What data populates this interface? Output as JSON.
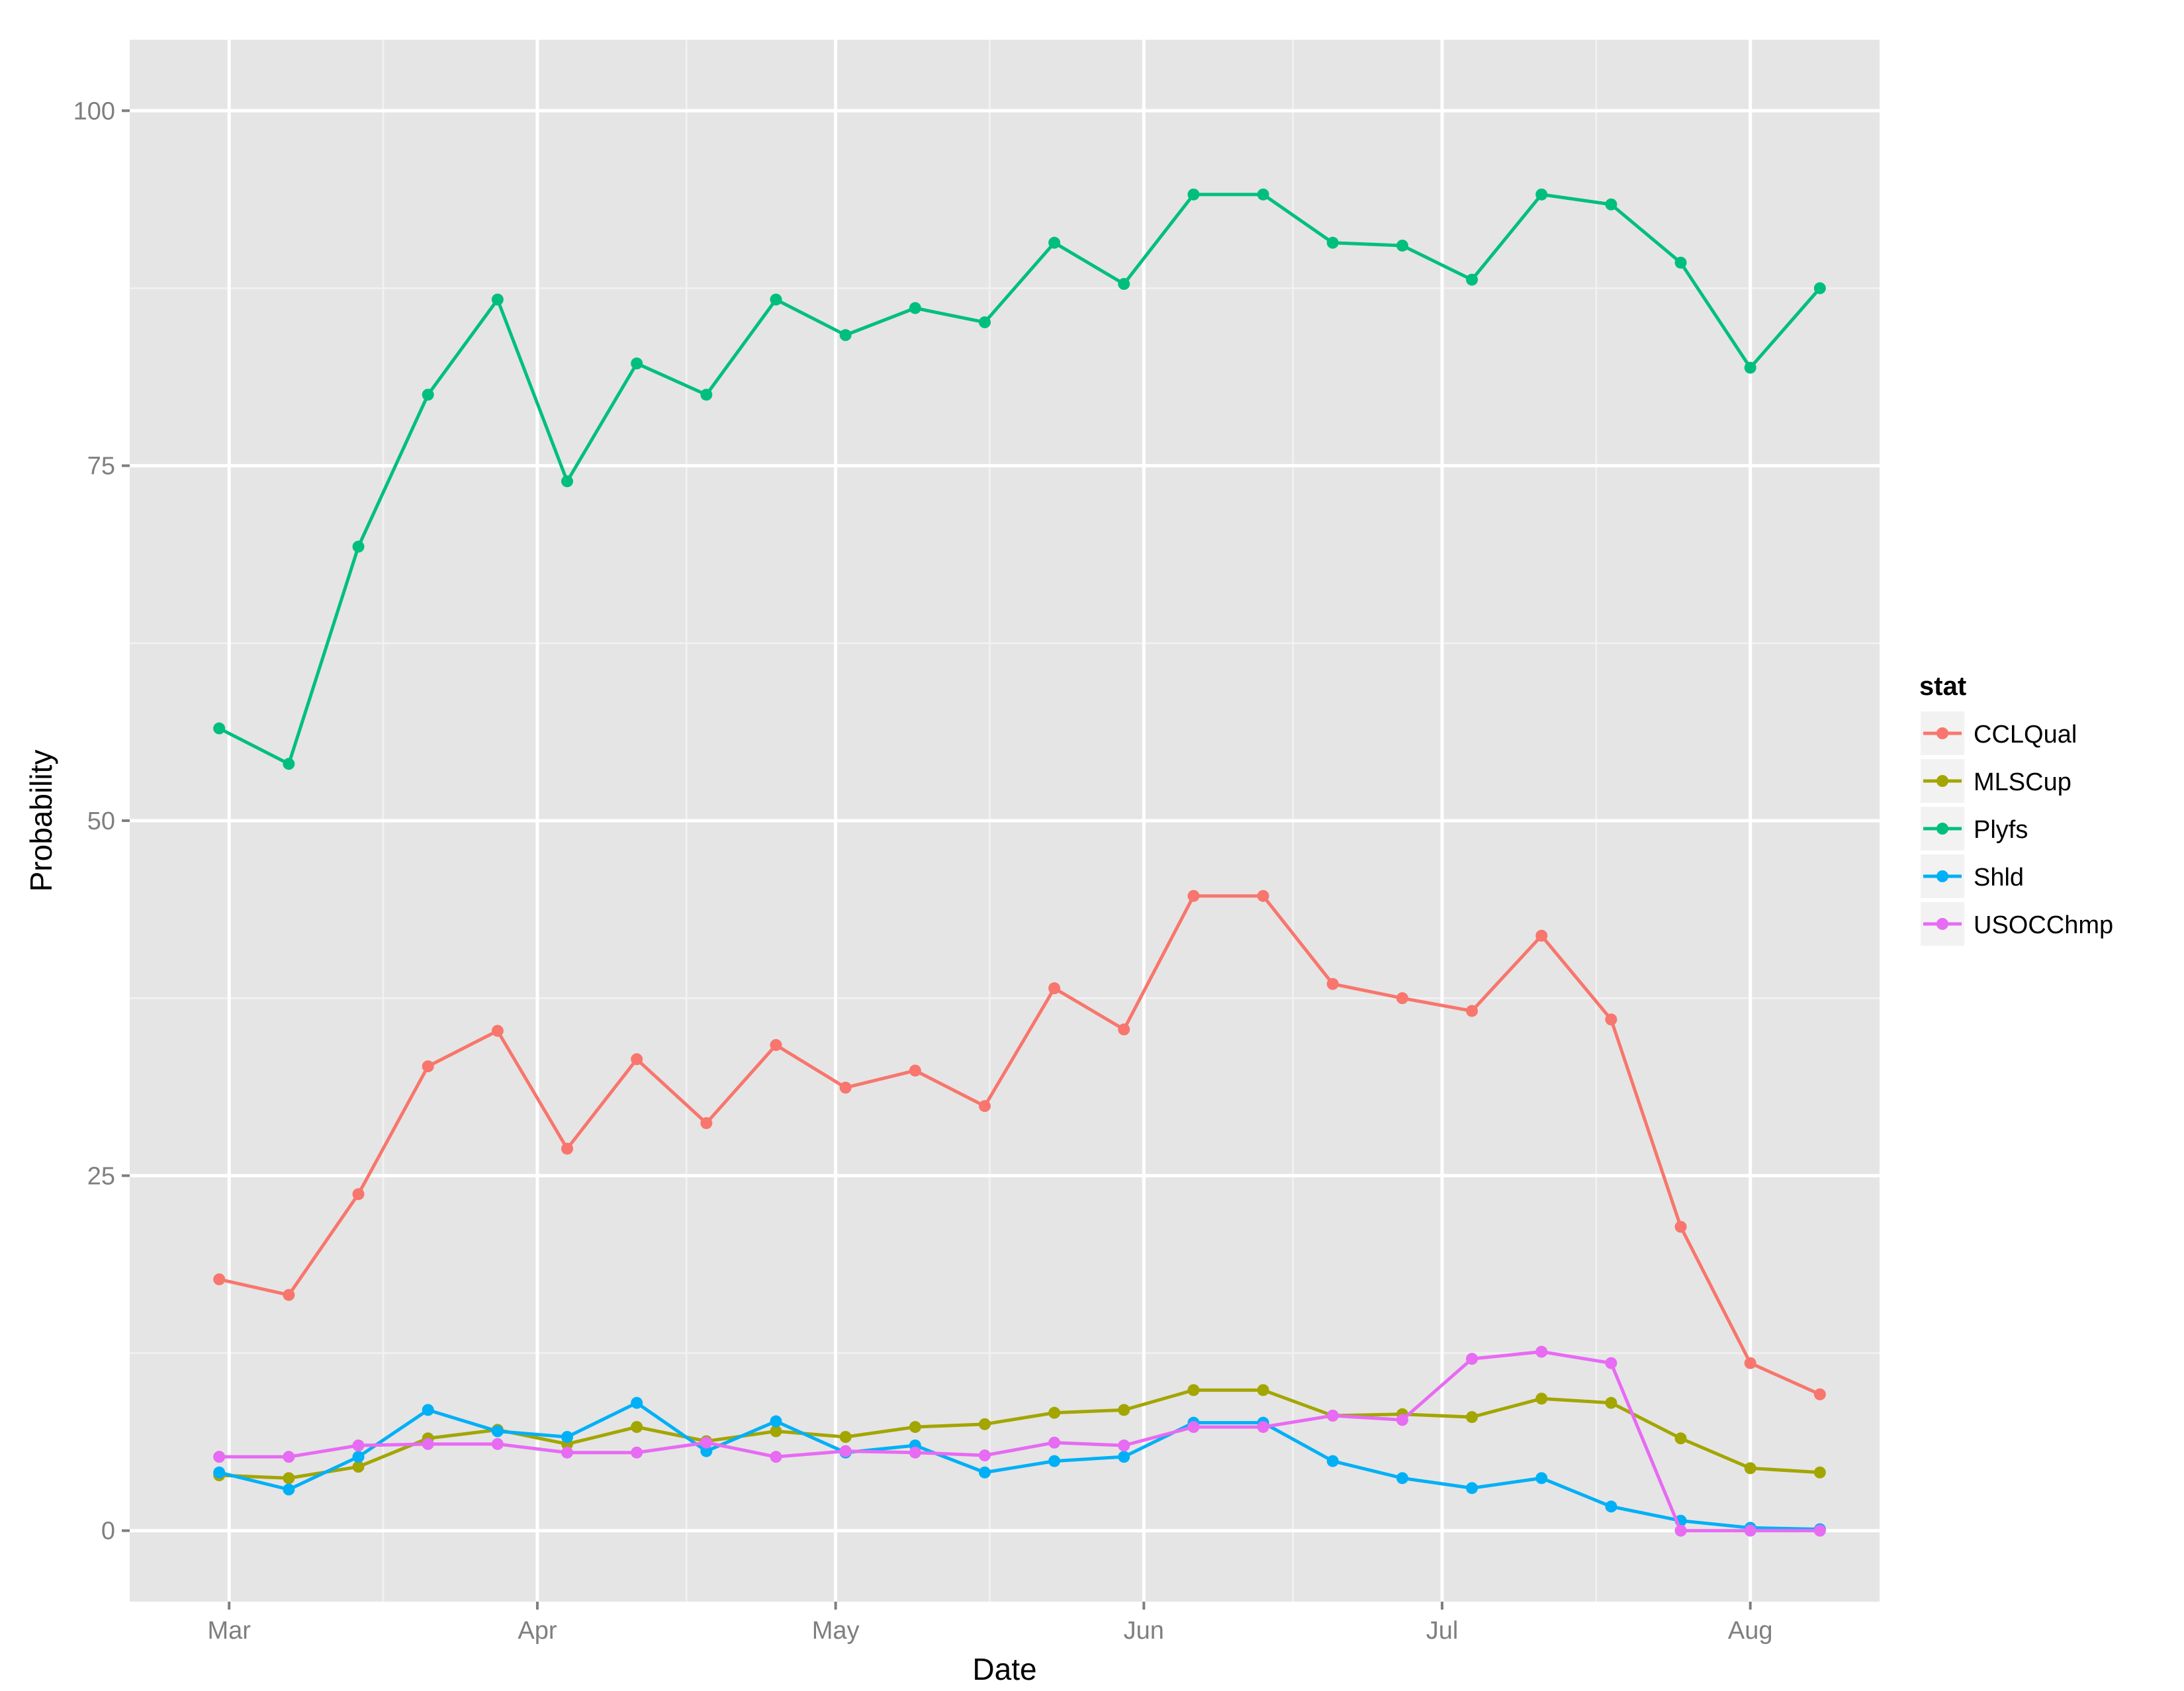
{
  "chart_data": {
    "type": "line",
    "title": "",
    "xlabel": "Date",
    "ylabel": "Probability",
    "ylim": [
      -5,
      105
    ],
    "y_ticks": [
      0,
      25,
      50,
      75,
      100
    ],
    "y_tick_labels": [
      "0",
      "25",
      "50",
      "75",
      "100"
    ],
    "x_tick_labels": [
      "Mar",
      "Apr",
      "May",
      "Jun",
      "Jul",
      "Aug"
    ],
    "x_tick_days": [
      1,
      32,
      62,
      93,
      123,
      154
    ],
    "x_range_days": [
      -9,
      167
    ],
    "grid": true,
    "legend": {
      "title": "stat",
      "position": "right"
    },
    "x": [
      "Feb 28",
      "Mar 7",
      "Mar 14",
      "Mar 21",
      "Mar 28",
      "Apr 4",
      "Apr 11",
      "Apr 18",
      "Apr 25",
      "May 2",
      "May 9",
      "May 16",
      "May 23",
      "May 30",
      "Jun 6",
      "Jun 13",
      "Jun 20",
      "Jun 27",
      "Jul 4",
      "Jul 11",
      "Jul 18",
      "Jul 25",
      "Aug 1",
      "Aug 8"
    ],
    "x_days": [
      0,
      7,
      14,
      21,
      28,
      35,
      42,
      49,
      56,
      63,
      70,
      77,
      84,
      91,
      98,
      105,
      112,
      119,
      126,
      133,
      140,
      147,
      154,
      161
    ],
    "series": [
      {
        "name": "CCLQual",
        "color": "#F8766D",
        "values": [
          17.7,
          16.6,
          23.7,
          32.7,
          35.2,
          26.9,
          33.2,
          28.7,
          34.2,
          31.2,
          32.4,
          29.9,
          38.2,
          35.3,
          44.7,
          44.7,
          38.5,
          37.5,
          36.6,
          41.9,
          36.0,
          21.4,
          11.8,
          9.6
        ]
      },
      {
        "name": "MLSCup",
        "color": "#A3A500",
        "values": [
          3.9,
          3.7,
          4.5,
          6.5,
          7.1,
          6.1,
          7.3,
          6.3,
          7.0,
          6.6,
          7.3,
          7.5,
          8.3,
          8.5,
          9.9,
          9.9,
          8.1,
          8.2,
          8.0,
          9.3,
          9.0,
          6.5,
          4.4,
          4.1
        ]
      },
      {
        "name": "Plyfs",
        "color": "#00BF7D",
        "values": [
          56.5,
          54.0,
          69.3,
          80.0,
          86.7,
          73.9,
          82.2,
          80.0,
          86.7,
          84.2,
          86.1,
          85.1,
          90.7,
          87.8,
          94.1,
          94.1,
          90.7,
          90.5,
          88.1,
          94.1,
          93.4,
          89.3,
          81.9,
          87.5
        ]
      },
      {
        "name": "Shld",
        "color": "#00B0F6",
        "values": [
          4.1,
          2.9,
          5.2,
          8.5,
          7.0,
          6.6,
          9.0,
          5.6,
          7.7,
          5.5,
          6.0,
          4.1,
          4.9,
          5.2,
          7.6,
          7.6,
          4.9,
          3.7,
          3.0,
          3.7,
          1.7,
          0.7,
          0.2,
          0.1
        ]
      },
      {
        "name": "USOCChmp",
        "color": "#E76BF3",
        "values": [
          5.2,
          5.2,
          6.0,
          6.1,
          6.1,
          5.5,
          5.5,
          6.2,
          5.2,
          5.6,
          5.5,
          5.3,
          6.2,
          6.0,
          7.3,
          7.3,
          8.1,
          7.8,
          12.1,
          12.6,
          11.8,
          0.0,
          0.0,
          0.0
        ]
      }
    ]
  },
  "colors": {
    "panel_bg": "#E5E5E5",
    "grid_major": "#FFFFFF",
    "grid_minor": "#F2F2F2",
    "axis_text": "#7F7F7F",
    "legend_key_bg": "#F2F2F2"
  }
}
